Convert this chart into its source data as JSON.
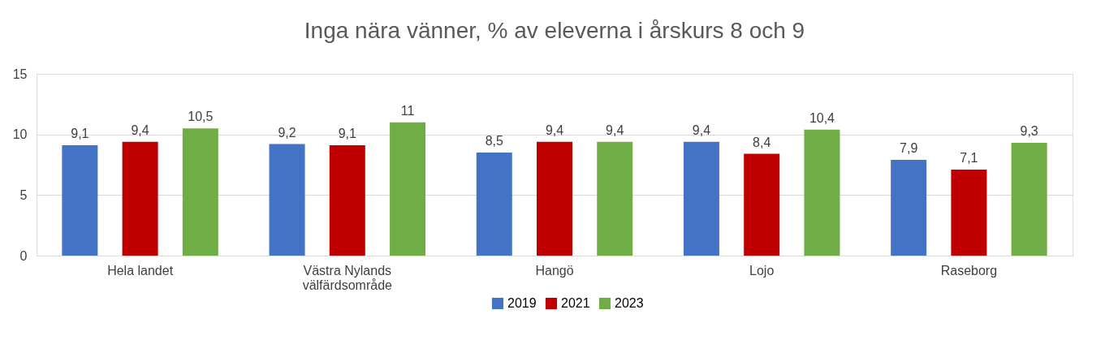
{
  "chart_data": {
    "type": "bar",
    "title": "Inga nära vänner, % av eleverna i årskurs 8 och 9",
    "categories": [
      "Hela landet",
      "Västra Nylands välfärdsområde",
      "Hangö",
      "Lojo",
      "Raseborg"
    ],
    "series": [
      {
        "name": "2019",
        "color": "#4472c4",
        "values": [
          9.1,
          9.2,
          8.5,
          9.4,
          7.9
        ],
        "value_labels": [
          "9,1",
          "9,2",
          "8,5",
          "9,4",
          "7,9"
        ]
      },
      {
        "name": "2021",
        "color": "#c00000",
        "values": [
          9.4,
          9.1,
          9.4,
          8.4,
          7.1
        ],
        "value_labels": [
          "9,4",
          "9,1",
          "9,4",
          "8,4",
          "7,1"
        ]
      },
      {
        "name": "2023",
        "color": "#70ad47",
        "values": [
          10.5,
          11,
          9.4,
          10.4,
          9.3
        ],
        "value_labels": [
          "10,5",
          "11",
          "9,4",
          "10,4",
          "9,3"
        ]
      }
    ],
    "ylim": [
      0,
      15
    ],
    "yticks": [
      0,
      5,
      10,
      15
    ],
    "grid": "y",
    "legend": "bottom"
  }
}
